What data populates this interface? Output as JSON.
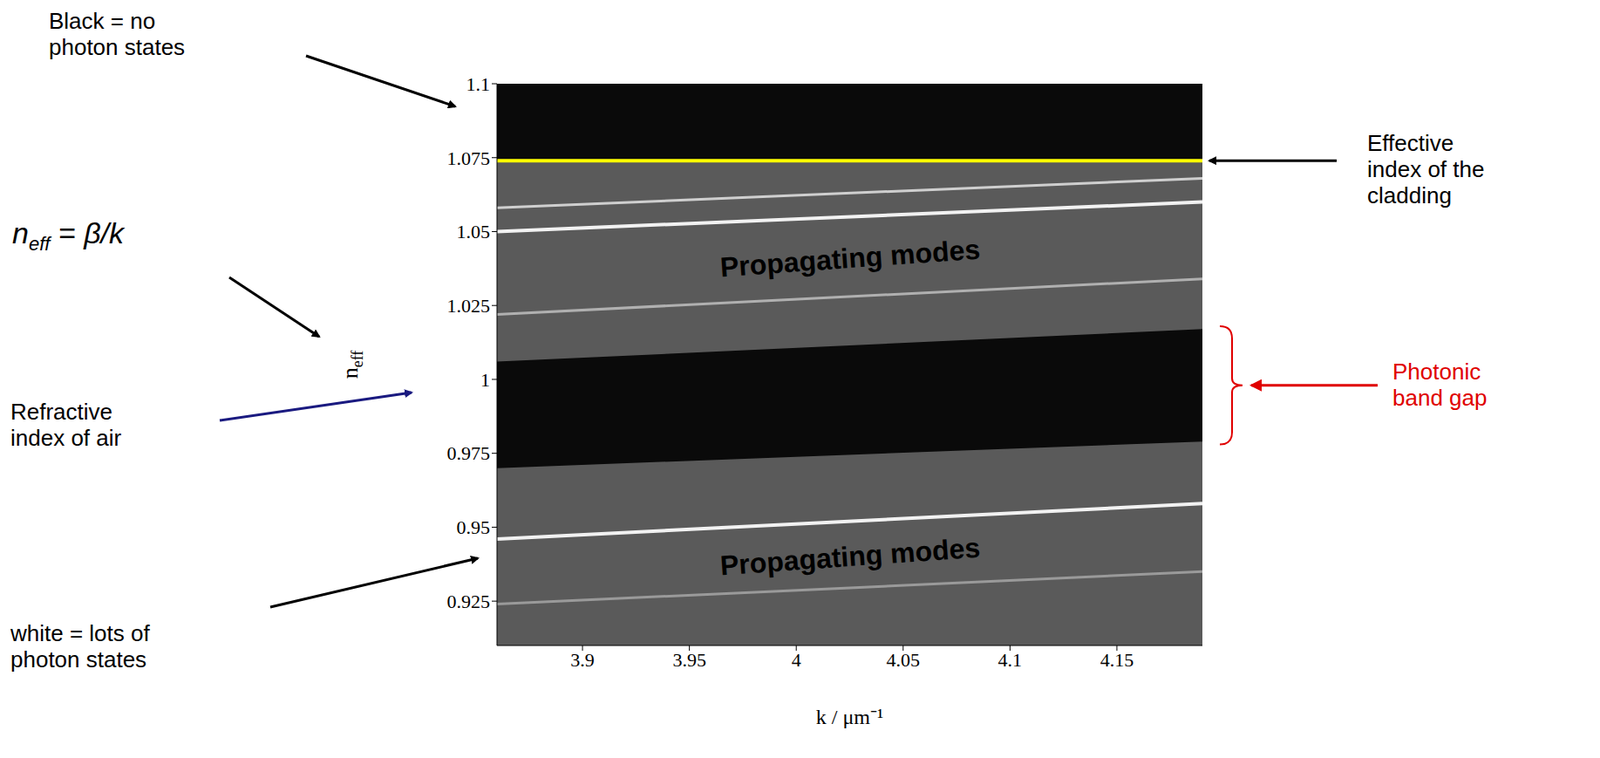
{
  "chart_data": {
    "type": "area",
    "x_label": "k / μm⁻¹",
    "y_label": {
      "text": "n",
      "subscript": "eff"
    },
    "xlim": [
      3.86,
      4.19
    ],
    "xticks": [
      3.9,
      3.95,
      4,
      4.05,
      4.1,
      4.15
    ],
    "ylim": [
      0.91,
      1.1
    ],
    "yticks": [
      0.925,
      0.95,
      0.975,
      1,
      1.025,
      1.05,
      1.075,
      1.1
    ],
    "x": [
      3.86,
      4.19
    ],
    "bands": [
      {
        "label": "Propagating modes",
        "lower": [
          0.91,
          0.91
        ],
        "upper": [
          0.97,
          0.979
        ],
        "color": "#5a5a5a"
      },
      {
        "label": "Propagating modes",
        "lower": [
          1.006,
          1.017
        ],
        "upper": [
          1.074,
          1.074
        ],
        "color": "#5a5a5a"
      }
    ],
    "series": [
      {
        "color": "#9a9a9a",
        "values": [
          0.924,
          0.935
        ]
      },
      {
        "color": "#f2f2f2",
        "values": [
          0.946,
          0.958
        ]
      },
      {
        "color": "#b0b0b0",
        "values": [
          1.022,
          1.034
        ]
      },
      {
        "color": "#f2f2f2",
        "values": [
          1.05,
          1.06
        ]
      },
      {
        "color": "#cfcfcf",
        "values": [
          1.058,
          1.068
        ]
      }
    ],
    "reference_lines": [
      {
        "value": 1.074,
        "color": "#ffff00",
        "label": "Effective\nindex of the\ncladding"
      }
    ],
    "annotations": [
      {
        "text": "Black = no\nphoton states"
      },
      {
        "text": "n",
        "subscript": "eff",
        "rest": " = β/k"
      },
      {
        "text": "Refractive\nindex of air",
        "color": "#1a1a80"
      },
      {
        "text": "white = lots of\nphoton states"
      },
      {
        "text": "Photonic\nband gap",
        "color": "#e00000",
        "range": [
          0.978,
          1.018
        ]
      }
    ]
  }
}
